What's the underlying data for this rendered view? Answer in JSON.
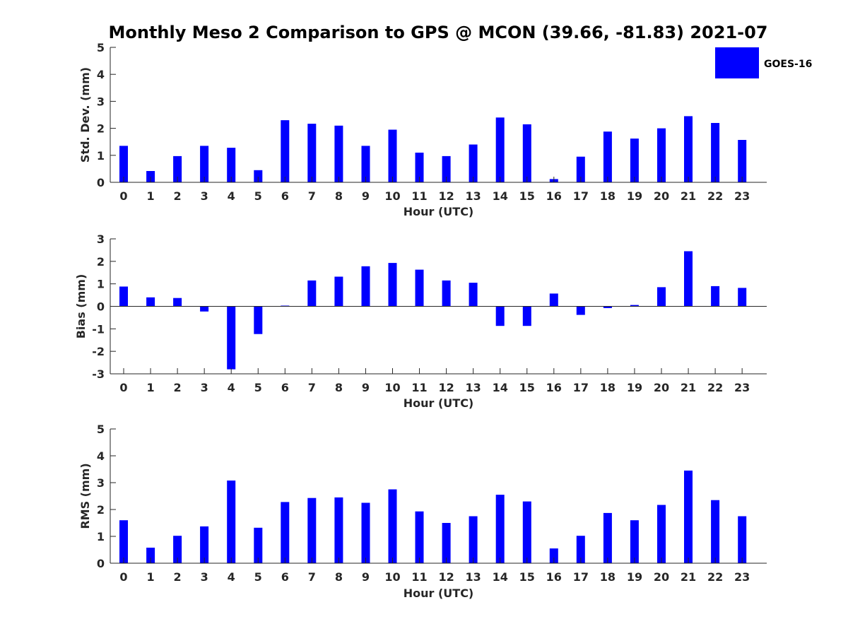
{
  "title": "Monthly Meso 2 Comparison to GPS @ MCON (39.66, -81.83) 2021-07",
  "legend": {
    "label": "GOES-16",
    "placement": "top-right"
  },
  "colors": {
    "bar": "#0000ff",
    "axis": "#262626",
    "title": "#000000"
  },
  "chart_data": [
    {
      "type": "bar",
      "categories": [
        "0",
        "1",
        "2",
        "3",
        "4",
        "5",
        "6",
        "7",
        "8",
        "9",
        "10",
        "11",
        "12",
        "13",
        "14",
        "15",
        "16",
        "17",
        "18",
        "19",
        "20",
        "21",
        "22",
        "23"
      ],
      "series": [
        {
          "name": "GOES-16",
          "values": [
            1.35,
            0.42,
            0.97,
            1.35,
            1.28,
            0.45,
            2.3,
            2.17,
            2.1,
            1.35,
            1.95,
            1.1,
            0.97,
            1.4,
            2.4,
            2.15,
            0.12,
            0.95,
            1.88,
            1.62,
            2.0,
            2.45,
            2.2,
            1.57
          ]
        }
      ],
      "xlabel": "Hour (UTC)",
      "ylabel": "Std. Dev. (mm)",
      "ylim": [
        0,
        5
      ],
      "yticks": [
        "0",
        "1",
        "2",
        "3",
        "4",
        "5"
      ],
      "grid": false
    },
    {
      "type": "bar",
      "categories": [
        "0",
        "1",
        "2",
        "3",
        "4",
        "5",
        "6",
        "7",
        "8",
        "9",
        "10",
        "11",
        "12",
        "13",
        "14",
        "15",
        "16",
        "17",
        "18",
        "19",
        "20",
        "21",
        "22",
        "23"
      ],
      "series": [
        {
          "name": "GOES-16",
          "values": [
            0.88,
            0.4,
            0.37,
            -0.23,
            -2.8,
            -1.23,
            0.03,
            1.15,
            1.32,
            1.78,
            1.93,
            1.63,
            1.15,
            1.05,
            -0.87,
            -0.87,
            0.57,
            -0.38,
            -0.08,
            0.06,
            0.85,
            2.45,
            0.9,
            0.82
          ]
        }
      ],
      "xlabel": "Hour (UTC)",
      "ylabel": "Bias (mm)",
      "ylim": [
        -3,
        3
      ],
      "yticks": [
        "-3",
        "-2",
        "-1",
        "0",
        "1",
        "2",
        "3"
      ],
      "grid": false
    },
    {
      "type": "bar",
      "categories": [
        "0",
        "1",
        "2",
        "3",
        "4",
        "5",
        "6",
        "7",
        "8",
        "9",
        "10",
        "11",
        "12",
        "13",
        "14",
        "15",
        "16",
        "17",
        "18",
        "19",
        "20",
        "21",
        "22",
        "23"
      ],
      "series": [
        {
          "name": "GOES-16",
          "values": [
            1.6,
            0.58,
            1.02,
            1.37,
            3.08,
            1.32,
            2.28,
            2.43,
            2.45,
            2.25,
            2.75,
            1.93,
            1.5,
            1.75,
            2.55,
            2.3,
            0.55,
            1.02,
            1.87,
            1.6,
            2.17,
            3.45,
            2.35,
            1.75
          ]
        }
      ],
      "xlabel": "Hour (UTC)",
      "ylabel": "RMS (mm)",
      "ylim": [
        0,
        5
      ],
      "yticks": [
        "0",
        "1",
        "2",
        "3",
        "4",
        "5"
      ],
      "grid": false
    }
  ]
}
